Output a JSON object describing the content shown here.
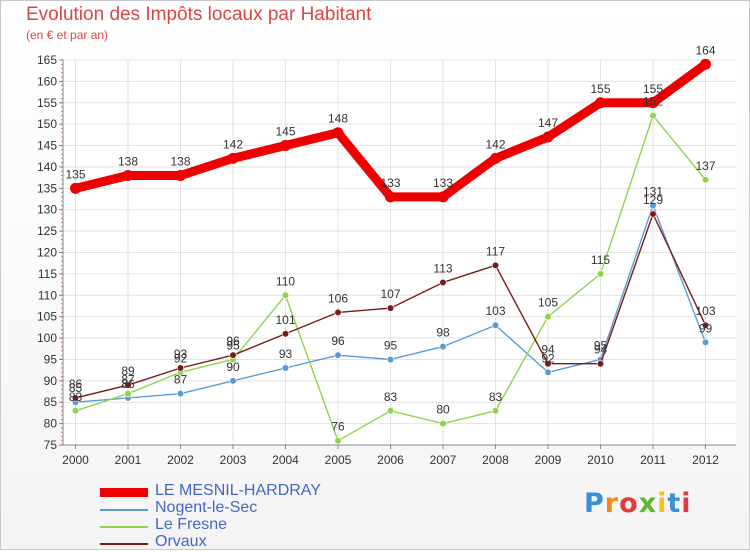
{
  "header": {
    "title": "Evolution des Impôts locaux par Habitant",
    "subtitle": "(en € et par an)"
  },
  "brand": {
    "text": "Proxiti",
    "colors": [
      "#3a8fd6",
      "#f08a1c",
      "#e23b3b",
      "#5cb82d",
      "#f0c419",
      "#3a8fd6",
      "#e23b3b"
    ]
  },
  "chart_data": {
    "type": "line",
    "x": [
      2000,
      2001,
      2002,
      2003,
      2004,
      2005,
      2006,
      2007,
      2008,
      2009,
      2010,
      2011,
      2012
    ],
    "ylim": [
      75,
      165
    ],
    "yticks": [
      75,
      80,
      85,
      90,
      95,
      100,
      105,
      110,
      115,
      120,
      125,
      130,
      135,
      140,
      145,
      150,
      155,
      160,
      165
    ],
    "grid": true,
    "legend_position": "bottom-left",
    "series": [
      {
        "name": "LE MESNIL-HARDRAY",
        "color": "#ee0000",
        "values": [
          135,
          138,
          138,
          142,
          145,
          148,
          133,
          133,
          142,
          147,
          155,
          155,
          164
        ]
      },
      {
        "name": "Nogent-le-Sec",
        "color": "#5b9bd5",
        "values": [
          85,
          86,
          87,
          90,
          93,
          96,
          95,
          98,
          103,
          92,
          95,
          131,
          99
        ]
      },
      {
        "name": "Le Fresne",
        "color": "#8ed44a",
        "values": [
          83,
          87,
          92,
          95,
          110,
          76,
          83,
          80,
          83,
          105,
          115,
          152,
          137
        ]
      },
      {
        "name": "Orvaux",
        "color": "#7a1a1a",
        "values": [
          86,
          89,
          93,
          96,
          101,
          106,
          107,
          113,
          117,
          94,
          94,
          129,
          103
        ]
      }
    ]
  }
}
